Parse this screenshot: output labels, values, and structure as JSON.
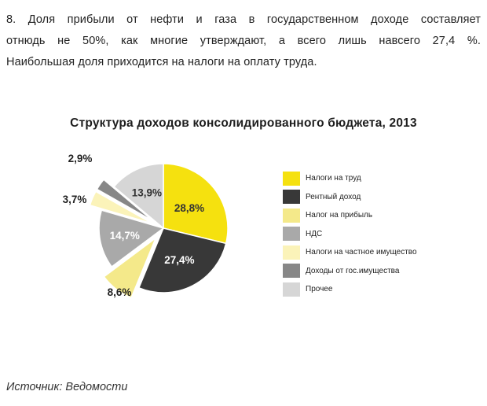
{
  "intro": {
    "line1": "8. Доля прибыли от нефти и газа в государственном доходе составляет",
    "line2": "отнюдь не 50%, как многие утверждают, а всего лишь навсего 27,4 %.",
    "line3": "Наибольшая доля приходится на налоги на оплату труда."
  },
  "chart_data": {
    "type": "pie",
    "title": "Структура доходов консолидированного бюджета, 2013",
    "categories": [
      "Налоги на труд",
      "Рентный доход",
      "Налог на прибыль",
      "НДС",
      "Налоги на частное имущество",
      "Доходы от гос.имущества",
      "Прочее"
    ],
    "values": [
      28.8,
      27.4,
      8.6,
      14.7,
      3.7,
      2.9,
      13.9
    ],
    "data_labels": [
      "28,8%",
      "27,4%",
      "8,6%",
      "14,7%",
      "3,7%",
      "2,9%",
      "13,9%"
    ],
    "colors": [
      "#f5e10f",
      "#383838",
      "#f4e98a",
      "#a9a9a9",
      "#fbf3b9",
      "#878787",
      "#d6d6d6"
    ],
    "exploded": [
      false,
      false,
      true,
      false,
      true,
      true,
      false
    ],
    "legend_position": "right"
  },
  "source": "Источник: Ведомости"
}
